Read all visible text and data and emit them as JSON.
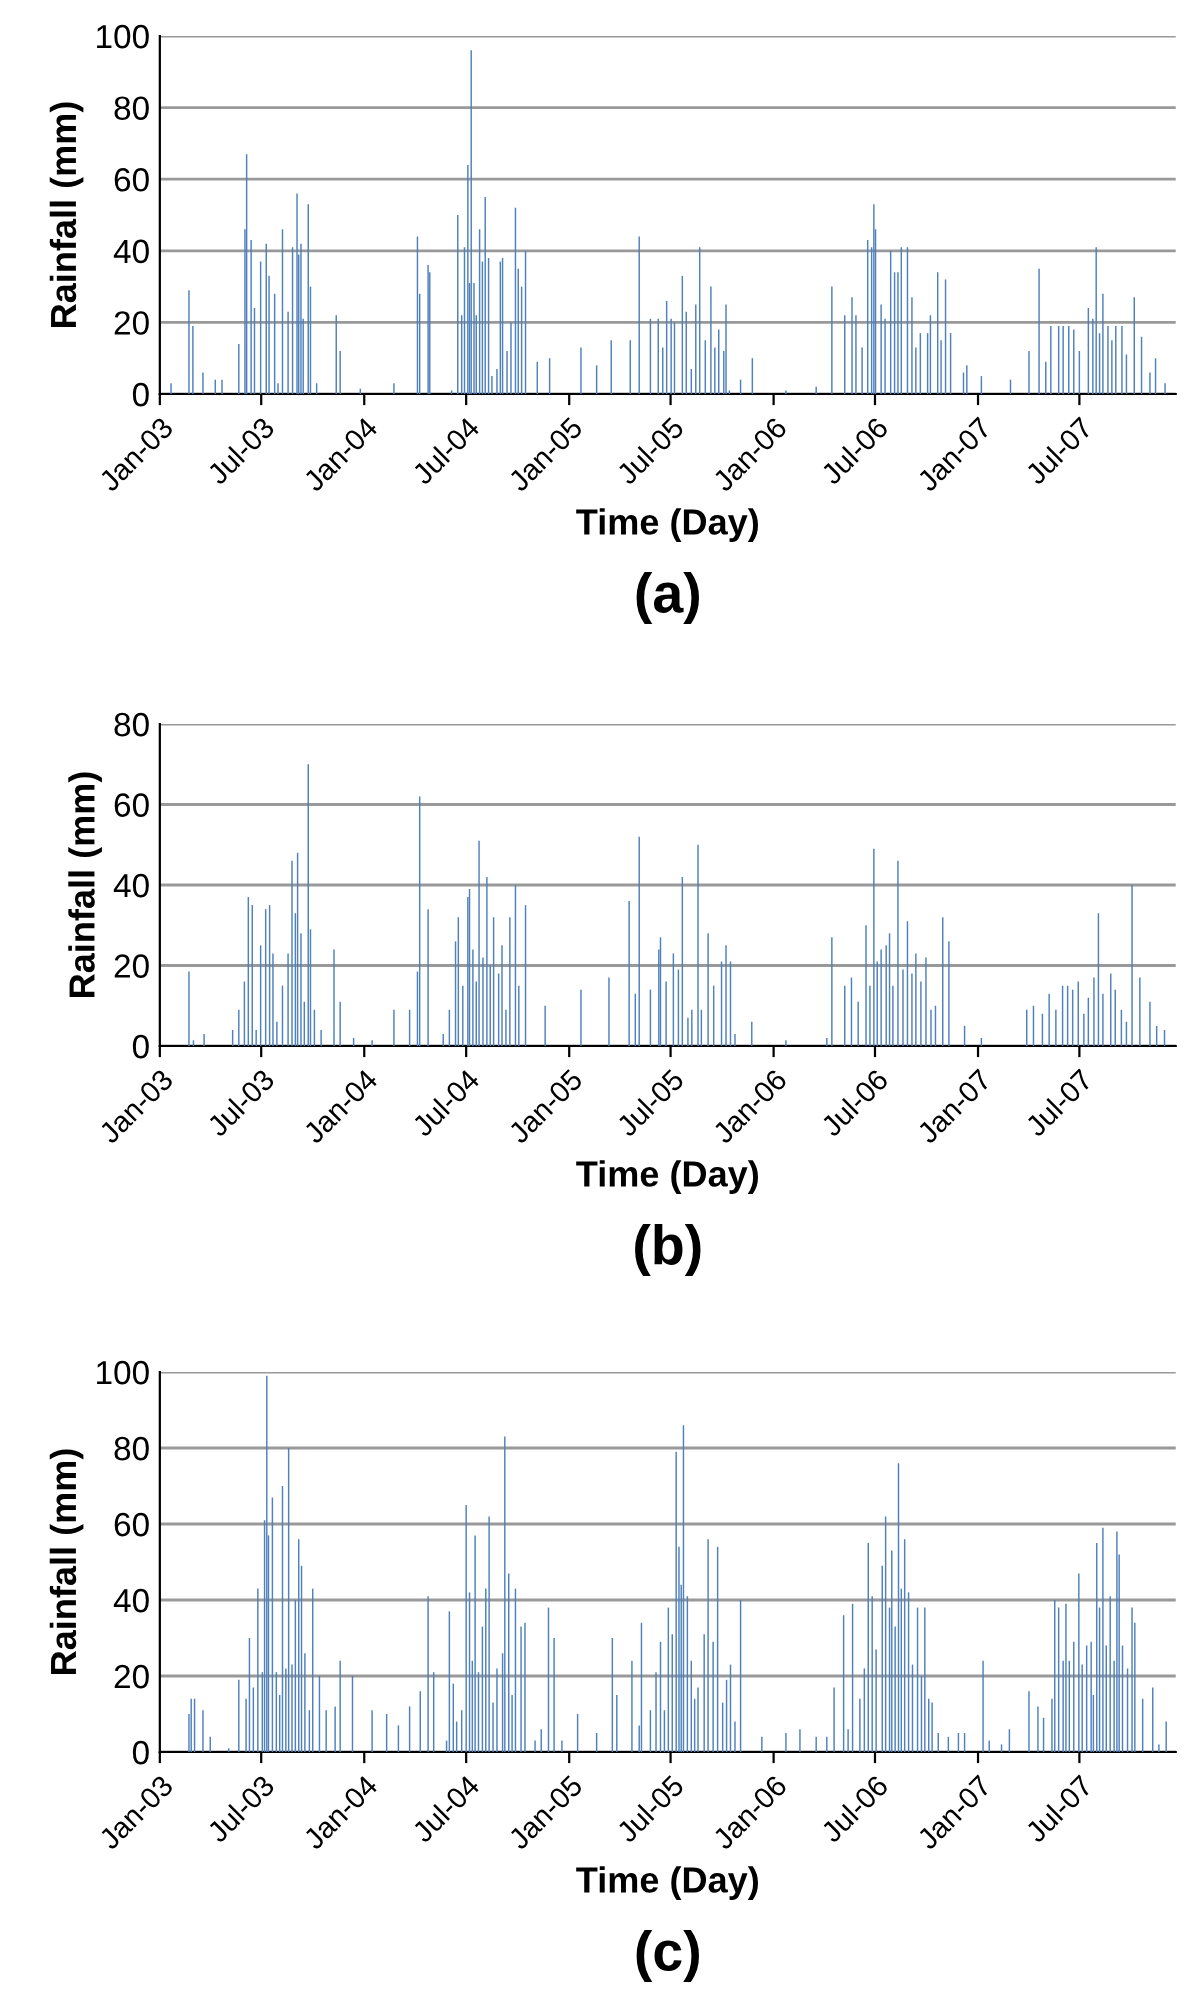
{
  "chart_data": [
    {
      "type": "bar",
      "title": "(a)",
      "xlabel": "Time (Day)",
      "ylabel": "Rainfall (mm)",
      "color": "#4f81bd",
      "grid": "y",
      "xlim": [
        "2003-01-01",
        "2007-12-20"
      ],
      "ylim": [
        0,
        100
      ],
      "yticks": [
        0,
        20,
        40,
        60,
        80,
        100
      ],
      "xticks": [
        {
          "value": "2003-01-01",
          "label": "Jan-03"
        },
        {
          "value": "2003-07-01",
          "label": "Jul-03"
        },
        {
          "value": "2004-01-01",
          "label": "Jan-04"
        },
        {
          "value": "2004-07-01",
          "label": "Jul-04"
        },
        {
          "value": "2005-01-01",
          "label": "Jan-05"
        },
        {
          "value": "2005-07-01",
          "label": "Jul-05"
        },
        {
          "value": "2006-01-01",
          "label": "Jan-06"
        },
        {
          "value": "2006-07-01",
          "label": "Jul-06"
        },
        {
          "value": "2007-01-01",
          "label": "Jan-07"
        },
        {
          "value": "2007-07-01",
          "label": "Jul-07"
        }
      ],
      "x": [
        "2003-01-21",
        "2003-02-22",
        "2003-03-01",
        "2003-03-19",
        "2003-04-10",
        "2003-04-22",
        "2003-05-22",
        "2003-06-02",
        "2003-06-05",
        "2003-06-13",
        "2003-06-19",
        "2003-06-30",
        "2003-07-10",
        "2003-07-15",
        "2003-07-25",
        "2003-07-31",
        "2003-08-08",
        "2003-08-18",
        "2003-08-26",
        "2003-09-03",
        "2003-09-06",
        "2003-09-10",
        "2003-09-14",
        "2003-09-23",
        "2003-09-27",
        "2003-10-08",
        "2003-11-12",
        "2003-11-19",
        "2003-12-25",
        "2004-02-23",
        "2004-04-05",
        "2004-04-09",
        "2004-04-24",
        "2004-04-27",
        "2004-06-05",
        "2004-06-16",
        "2004-06-23",
        "2004-06-28",
        "2004-07-04",
        "2004-07-07",
        "2004-07-10",
        "2004-07-15",
        "2004-07-19",
        "2004-07-25",
        "2004-07-30",
        "2004-08-04",
        "2004-08-10",
        "2004-08-16",
        "2004-08-25",
        "2004-08-31",
        "2004-09-04",
        "2004-09-12",
        "2004-09-19",
        "2004-09-27",
        "2004-10-02",
        "2004-10-08",
        "2004-10-15",
        "2004-11-05",
        "2004-11-27",
        "2005-01-22",
        "2005-02-19",
        "2005-03-17",
        "2005-04-20",
        "2005-05-06",
        "2005-05-26",
        "2005-06-09",
        "2005-06-17",
        "2005-06-24",
        "2005-07-02",
        "2005-07-08",
        "2005-07-22",
        "2005-07-29",
        "2005-08-07",
        "2005-08-15",
        "2005-08-22",
        "2005-09-01",
        "2005-09-11",
        "2005-09-18",
        "2005-09-25",
        "2005-10-04",
        "2005-10-08",
        "2005-10-14",
        "2005-11-03",
        "2005-11-24",
        "2006-01-23",
        "2006-03-18",
        "2006-04-15",
        "2006-05-08",
        "2006-05-21",
        "2006-05-28",
        "2006-06-08",
        "2006-06-18",
        "2006-06-25",
        "2006-06-29",
        "2006-07-02",
        "2006-07-12",
        "2006-07-19",
        "2006-07-29",
        "2006-08-05",
        "2006-08-11",
        "2006-08-17",
        "2006-08-28",
        "2006-09-05",
        "2006-09-12",
        "2006-09-20",
        "2006-10-03",
        "2006-10-08",
        "2006-10-21",
        "2006-10-27",
        "2006-11-04",
        "2006-11-13",
        "2006-12-06",
        "2006-12-12",
        "2007-01-07",
        "2007-02-28",
        "2007-04-02",
        "2007-04-20",
        "2007-05-02",
        "2007-05-11",
        "2007-05-25",
        "2007-06-02",
        "2007-06-12",
        "2007-06-21",
        "2007-07-01",
        "2007-07-17",
        "2007-07-25",
        "2007-07-31",
        "2007-08-06",
        "2007-08-12",
        "2007-08-21",
        "2007-08-28",
        "2007-09-04",
        "2007-09-15",
        "2007-09-23",
        "2007-10-07",
        "2007-10-20",
        "2007-11-04",
        "2007-11-14",
        "2007-12-01"
      ],
      "values": [
        3,
        29,
        19,
        6,
        4,
        4,
        14,
        46,
        67,
        43,
        24,
        37,
        42,
        33,
        28,
        3,
        46,
        23,
        41,
        56,
        39,
        42,
        21,
        53,
        30,
        3,
        22,
        12,
        1.5,
        3,
        44,
        28,
        36,
        34,
        1,
        50,
        22,
        41,
        64,
        31,
        96,
        31,
        22,
        46,
        37,
        55,
        38,
        5,
        7,
        37,
        38,
        12,
        20,
        52,
        35,
        30,
        40,
        9,
        10,
        13,
        8,
        15,
        15,
        44,
        21,
        21,
        13,
        26,
        21,
        20,
        33,
        23,
        7,
        25,
        41,
        15,
        30,
        13,
        18,
        12,
        25,
        1,
        4,
        10,
        1,
        2,
        30,
        22,
        27,
        22,
        13,
        43,
        41,
        53,
        46,
        25,
        21,
        40,
        34,
        34,
        41,
        41,
        27,
        13,
        17,
        17,
        22,
        34,
        15,
        32,
        17,
        6,
        8,
        5,
        4,
        12,
        35,
        9,
        19,
        19,
        19,
        19,
        18,
        12,
        24,
        21,
        41,
        17,
        28,
        19,
        15,
        19,
        19,
        11,
        27,
        16,
        6,
        10,
        3
      ]
    },
    {
      "type": "bar",
      "title": "(b)",
      "xlabel": "Time (Day)",
      "ylabel": "Rainfall (mm)",
      "color": "#4f81bd",
      "grid": "y",
      "xlim": [
        "2003-01-01",
        "2007-12-20"
      ],
      "ylim": [
        0,
        80
      ],
      "yticks": [
        0,
        20,
        40,
        60,
        80
      ],
      "xticks": [
        {
          "value": "2003-01-01",
          "label": "Jan-03"
        },
        {
          "value": "2003-07-01",
          "label": "Jul-03"
        },
        {
          "value": "2004-01-01",
          "label": "Jan-04"
        },
        {
          "value": "2004-07-01",
          "label": "Jul-04"
        },
        {
          "value": "2005-01-01",
          "label": "Jan-05"
        },
        {
          "value": "2005-07-01",
          "label": "Jul-05"
        },
        {
          "value": "2006-01-01",
          "label": "Jan-06"
        },
        {
          "value": "2006-07-01",
          "label": "Jul-06"
        },
        {
          "value": "2007-01-01",
          "label": "Jan-07"
        },
        {
          "value": "2007-07-01",
          "label": "Jul-07"
        }
      ],
      "x": [
        "2003-02-22",
        "2003-03-02",
        "2003-03-21",
        "2003-05-11",
        "2003-05-22",
        "2003-06-01",
        "2003-06-08",
        "2003-06-15",
        "2003-06-22",
        "2003-06-30",
        "2003-07-09",
        "2003-07-16",
        "2003-07-22",
        "2003-07-29",
        "2003-08-08",
        "2003-08-18",
        "2003-08-25",
        "2003-08-31",
        "2003-09-04",
        "2003-09-10",
        "2003-09-16",
        "2003-09-23",
        "2003-09-27",
        "2003-10-04",
        "2003-10-16",
        "2003-11-08",
        "2003-11-19",
        "2003-12-13",
        "2004-01-15",
        "2004-02-23",
        "2004-03-22",
        "2004-04-05",
        "2004-04-09",
        "2004-04-24",
        "2004-05-21",
        "2004-06-01",
        "2004-06-12",
        "2004-06-17",
        "2004-06-25",
        "2004-07-04",
        "2004-07-07",
        "2004-07-13",
        "2004-07-19",
        "2004-07-24",
        "2004-07-31",
        "2004-08-07",
        "2004-08-13",
        "2004-08-19",
        "2004-08-28",
        "2004-09-03",
        "2004-09-10",
        "2004-09-17",
        "2004-09-27",
        "2004-10-03",
        "2004-10-15",
        "2004-11-19",
        "2005-01-22",
        "2005-03-13",
        "2005-04-18",
        "2005-04-29",
        "2005-05-06",
        "2005-05-26",
        "2005-06-10",
        "2005-06-13",
        "2005-06-23",
        "2005-07-06",
        "2005-07-15",
        "2005-07-22",
        "2005-08-01",
        "2005-08-08",
        "2005-08-19",
        "2005-08-25",
        "2005-09-06",
        "2005-09-16",
        "2005-09-30",
        "2005-10-08",
        "2005-10-16",
        "2005-10-24",
        "2005-11-23",
        "2006-01-23",
        "2006-04-06",
        "2006-04-15",
        "2006-05-08",
        "2006-05-20",
        "2006-06-01",
        "2006-06-15",
        "2006-06-22",
        "2006-06-29",
        "2006-07-05",
        "2006-07-12",
        "2006-07-21",
        "2006-07-27",
        "2006-08-02",
        "2006-08-11",
        "2006-08-20",
        "2006-08-28",
        "2006-09-05",
        "2006-09-12",
        "2006-09-21",
        "2006-09-30",
        "2006-10-09",
        "2006-10-17",
        "2006-10-30",
        "2006-11-10",
        "2006-12-08",
        "2007-01-07",
        "2007-03-29",
        "2007-04-10",
        "2007-04-26",
        "2007-05-08",
        "2007-05-20",
        "2007-06-01",
        "2007-06-10",
        "2007-06-19",
        "2007-06-29",
        "2007-07-09",
        "2007-07-17",
        "2007-07-27",
        "2007-08-04",
        "2007-08-12",
        "2007-08-26",
        "2007-09-03",
        "2007-09-14",
        "2007-09-23",
        "2007-10-03",
        "2007-10-17",
        "2007-11-04",
        "2007-11-16",
        "2007-11-30"
      ],
      "values": [
        18.5,
        1.4,
        3,
        4,
        9,
        16,
        37,
        35,
        4,
        25,
        34,
        35,
        23,
        6,
        15,
        23,
        46,
        33,
        48,
        28,
        11,
        70,
        29,
        9,
        4,
        24,
        11,
        2,
        1.4,
        9,
        9,
        18.5,
        62,
        34,
        3,
        9,
        26,
        32,
        15,
        37,
        39,
        24,
        16,
        51,
        22,
        42,
        20,
        32,
        18,
        25,
        9,
        32,
        40,
        15,
        35,
        10,
        14,
        17,
        36,
        13,
        52,
        14,
        24,
        27,
        16,
        23,
        19,
        42,
        7,
        9,
        50,
        9,
        28,
        15,
        21,
        25,
        21,
        3,
        6,
        1.4,
        2,
        27,
        15,
        17,
        11,
        30,
        15,
        49,
        21,
        24,
        25,
        28,
        15,
        46,
        19,
        31,
        18,
        23,
        16,
        22,
        9,
        10,
        32,
        26,
        5,
        2,
        9,
        10,
        8,
        13,
        9,
        15,
        15,
        14,
        16,
        8,
        12,
        17,
        33,
        13,
        18,
        14,
        9,
        6,
        40,
        17,
        11,
        5,
        4
      ]
    },
    {
      "type": "bar",
      "title": "(c)",
      "xlabel": "Time (Day)",
      "ylabel": "Rainfall (mm)",
      "color": "#4f81bd",
      "grid": "y",
      "xlim": [
        "2003-01-01",
        "2007-12-20"
      ],
      "ylim": [
        0,
        100
      ],
      "yticks": [
        0,
        20,
        40,
        60,
        80,
        100
      ],
      "xticks": [
        {
          "value": "2003-01-01",
          "label": "Jan-03"
        },
        {
          "value": "2003-07-01",
          "label": "Jul-03"
        },
        {
          "value": "2004-01-01",
          "label": "Jan-04"
        },
        {
          "value": "2004-07-01",
          "label": "Jul-04"
        },
        {
          "value": "2005-01-01",
          "label": "Jan-05"
        },
        {
          "value": "2005-07-01",
          "label": "Jul-05"
        },
        {
          "value": "2006-01-01",
          "label": "Jan-06"
        },
        {
          "value": "2006-07-01",
          "label": "Jul-06"
        },
        {
          "value": "2007-01-01",
          "label": "Jan-07"
        },
        {
          "value": "2007-07-01",
          "label": "Jul-07"
        }
      ],
      "x": [
        "2003-02-22",
        "2003-02-26",
        "2003-03-04",
        "2003-03-19",
        "2003-04-01",
        "2003-05-04",
        "2003-05-22",
        "2003-06-04",
        "2003-06-10",
        "2003-06-17",
        "2003-06-25",
        "2003-07-03",
        "2003-07-07",
        "2003-07-11",
        "2003-07-14",
        "2003-07-21",
        "2003-07-28",
        "2003-08-03",
        "2003-08-08",
        "2003-08-14",
        "2003-08-19",
        "2003-08-25",
        "2003-08-31",
        "2003-09-06",
        "2003-09-11",
        "2003-09-17",
        "2003-09-25",
        "2003-10-01",
        "2003-10-13",
        "2003-10-25",
        "2003-11-10",
        "2003-11-19",
        "2003-12-11",
        "2004-01-15",
        "2004-02-10",
        "2004-03-02",
        "2004-03-22",
        "2004-04-10",
        "2004-04-24",
        "2004-05-04",
        "2004-05-27",
        "2004-06-01",
        "2004-06-08",
        "2004-06-14",
        "2004-06-23",
        "2004-07-01",
        "2004-07-07",
        "2004-07-12",
        "2004-07-17",
        "2004-07-23",
        "2004-07-30",
        "2004-08-05",
        "2004-08-11",
        "2004-08-18",
        "2004-08-25",
        "2004-09-04",
        "2004-09-08",
        "2004-09-15",
        "2004-09-21",
        "2004-09-27",
        "2004-10-07",
        "2004-10-14",
        "2004-11-01",
        "2004-11-12",
        "2004-11-25",
        "2004-12-05",
        "2004-12-19",
        "2005-01-16",
        "2005-02-19",
        "2005-03-19",
        "2005-03-27",
        "2005-04-23",
        "2005-05-06",
        "2005-05-10",
        "2005-05-26",
        "2005-06-05",
        "2005-06-13",
        "2005-06-20",
        "2005-06-27",
        "2005-07-04",
        "2005-07-11",
        "2005-07-16",
        "2005-07-20",
        "2005-07-24",
        "2005-07-31",
        "2005-08-07",
        "2005-08-13",
        "2005-08-19",
        "2005-08-30",
        "2005-09-06",
        "2005-09-15",
        "2005-09-23",
        "2005-10-02",
        "2005-10-09",
        "2005-10-16",
        "2005-10-24",
        "2005-11-03",
        "2005-12-11",
        "2006-01-23",
        "2006-02-17",
        "2006-03-18",
        "2006-04-06",
        "2006-04-19",
        "2006-05-06",
        "2006-05-14",
        "2006-05-22",
        "2006-06-04",
        "2006-06-12",
        "2006-06-19",
        "2006-06-26",
        "2006-07-03",
        "2006-07-14",
        "2006-07-20",
        "2006-07-27",
        "2006-07-31",
        "2006-08-06",
        "2006-08-12",
        "2006-08-17",
        "2006-08-23",
        "2006-08-30",
        "2006-09-06",
        "2006-09-15",
        "2006-09-22",
        "2006-09-28",
        "2006-10-05",
        "2006-10-11",
        "2006-10-22",
        "2006-11-09",
        "2006-11-27",
        "2006-12-08",
        "2007-01-10",
        "2007-01-21",
        "2007-02-12",
        "2007-02-26",
        "2007-04-02",
        "2007-04-18",
        "2007-04-28",
        "2007-05-13",
        "2007-05-18",
        "2007-05-25",
        "2007-06-02",
        "2007-06-07",
        "2007-06-13",
        "2007-06-21",
        "2007-06-30",
        "2007-07-06",
        "2007-07-14",
        "2007-07-22",
        "2007-07-26",
        "2007-08-01",
        "2007-08-06",
        "2007-08-12",
        "2007-08-18",
        "2007-08-25",
        "2007-09-01",
        "2007-09-06",
        "2007-09-10",
        "2007-09-16",
        "2007-09-25",
        "2007-10-03",
        "2007-10-08",
        "2007-10-22",
        "2007-11-09",
        "2007-11-20",
        "2007-12-03"
      ],
      "values": [
        10,
        14,
        14,
        11,
        4,
        1,
        19,
        14,
        30,
        17,
        43,
        21,
        61,
        99,
        57,
        67,
        21,
        15,
        70,
        22,
        80,
        23,
        40,
        56,
        49,
        26,
        11,
        43,
        20,
        11,
        12,
        24,
        20,
        11,
        10,
        7,
        12,
        16,
        41,
        21,
        3,
        37,
        18,
        8,
        11,
        65,
        42,
        24,
        57,
        21,
        33,
        43,
        62,
        13,
        22,
        26,
        83,
        47,
        15,
        43,
        33,
        34,
        3,
        6,
        38,
        30,
        3,
        10,
        5,
        30,
        15,
        24,
        7,
        34,
        11,
        21,
        29,
        11,
        38,
        31,
        79,
        54,
        44,
        86,
        41,
        24,
        14,
        17,
        31,
        56,
        29,
        54,
        13,
        19,
        23,
        8,
        40,
        4,
        5,
        6,
        4,
        4,
        17,
        36,
        6,
        39,
        14,
        22,
        55,
        41,
        27,
        49,
        62,
        38,
        53,
        33,
        76,
        43,
        56,
        42,
        23,
        38,
        20,
        38,
        14,
        13,
        5,
        4,
        5,
        5,
        24,
        3,
        2,
        6,
        16,
        12,
        9,
        14,
        40,
        38,
        24,
        39,
        24,
        29,
        47,
        23,
        28,
        29,
        15,
        55,
        38,
        59,
        28,
        41,
        24,
        58,
        52,
        28,
        22,
        38,
        34,
        14,
        17,
        2,
        8
      ]
    }
  ]
}
